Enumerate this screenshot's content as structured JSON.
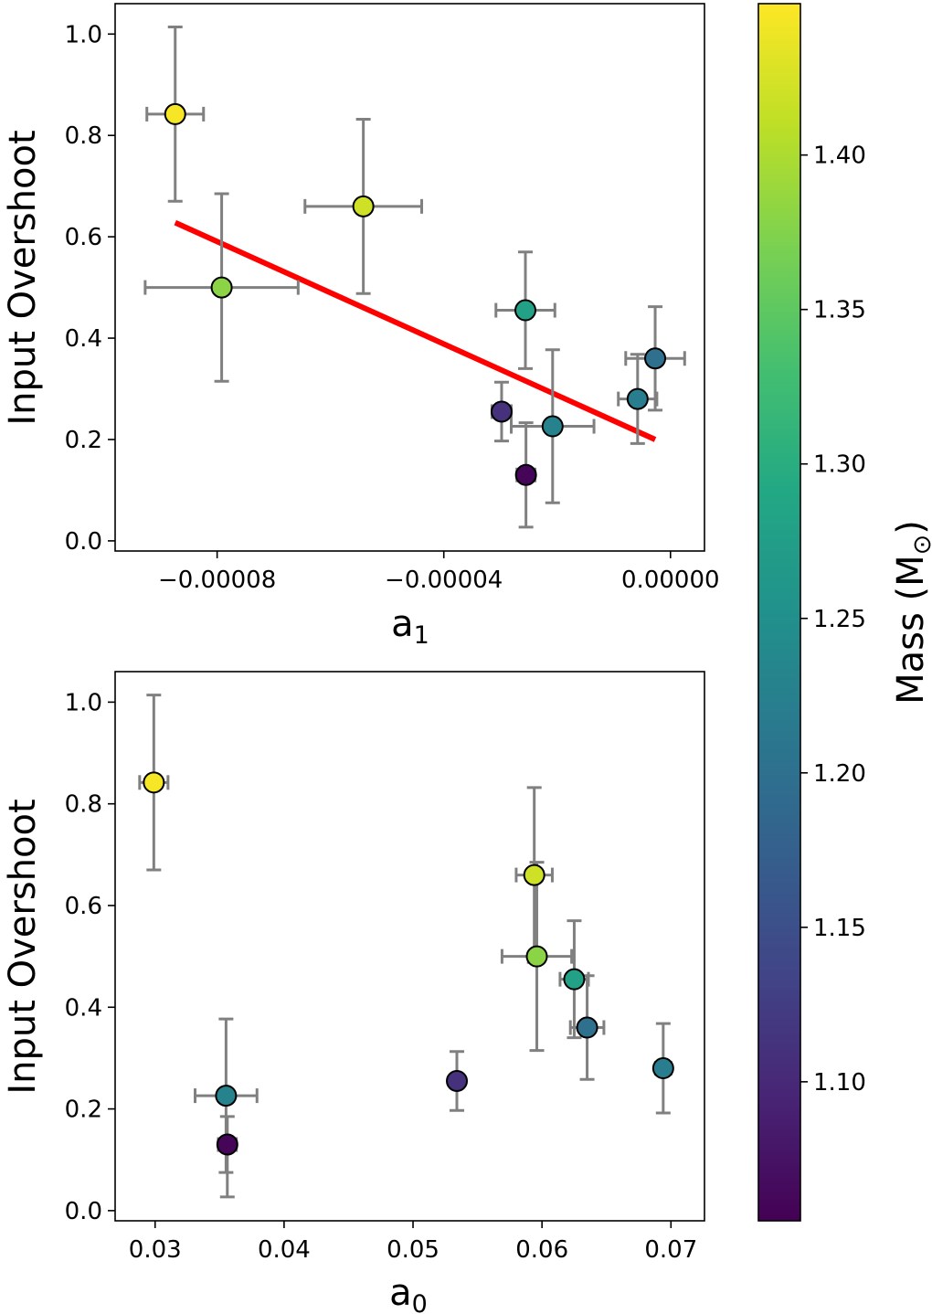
{
  "chart_data": [
    {
      "type": "scatter",
      "id": "top",
      "xlabel": "a",
      "xlabel_sub": "1",
      "ylabel": "Input Overshoot",
      "xlim": [
        -9.8e-05,
        6e-06
      ],
      "ylim": [
        -0.02,
        1.06
      ],
      "xticks": [
        -8e-05,
        -4e-05,
        0.0
      ],
      "xtick_labels": [
        "−0.00008",
        "−0.00004",
        "0.00000"
      ],
      "yticks": [
        0.0,
        0.2,
        0.4,
        0.6,
        0.8,
        1.0
      ],
      "ytick_labels": [
        "0.0",
        "0.2",
        "0.4",
        "0.6",
        "0.8",
        "1.0"
      ],
      "points": [
        {
          "x": -8.74e-05,
          "y": 0.842,
          "xerr": 5e-06,
          "yerr_low": 0.172,
          "yerr_high": 0.172,
          "mass": 1.445
        },
        {
          "x": -7.92e-05,
          "y": 0.5,
          "xerr": 1.35e-05,
          "yerr_low": 0.185,
          "yerr_high": 0.185,
          "mass": 1.38
        },
        {
          "x": -5.42e-05,
          "y": 0.66,
          "xerr": 1.03e-05,
          "yerr_low": 0.172,
          "yerr_high": 0.172,
          "mass": 1.42
        },
        {
          "x": -2.56e-05,
          "y": 0.455,
          "xerr": 5.2e-06,
          "yerr_low": 0.115,
          "yerr_high": 0.115,
          "mass": 1.28
        },
        {
          "x": -2.98e-05,
          "y": 0.255,
          "xerr": 1.7e-06,
          "yerr_low": 0.058,
          "yerr_high": 0.058,
          "mass": 1.11
        },
        {
          "x": -2.55e-05,
          "y": 0.13,
          "xerr": 1.6e-06,
          "yerr_low": 0.103,
          "yerr_high": 0.103,
          "mass": 1.06
        },
        {
          "x": -2.08e-05,
          "y": 0.226,
          "xerr": 7.3e-06,
          "yerr_low": 0.151,
          "yerr_high": 0.151,
          "mass": 1.23
        },
        {
          "x": -5.8e-06,
          "y": 0.28,
          "xerr": 3.4e-06,
          "yerr_low": 0.088,
          "yerr_high": 0.088,
          "mass": 1.22
        },
        {
          "x": -2.7e-06,
          "y": 0.36,
          "xerr": 5.2e-06,
          "yerr_low": 0.102,
          "yerr_high": 0.102,
          "mass": 1.2
        }
      ],
      "fit_line": {
        "x": [
          -8.74e-05,
          -2.7e-06
        ],
        "y": [
          0.628,
          0.2
        ],
        "color": "#ff0000"
      }
    },
    {
      "type": "scatter",
      "id": "bottom",
      "xlabel": "a",
      "xlabel_sub": "0",
      "ylabel": "Input Overshoot",
      "xlim": [
        0.0269,
        0.0726
      ],
      "ylim": [
        -0.02,
        1.06
      ],
      "xticks": [
        0.03,
        0.04,
        0.05,
        0.06,
        0.07
      ],
      "xtick_labels": [
        "0.03",
        "0.04",
        "0.05",
        "0.06",
        "0.07"
      ],
      "yticks": [
        0.0,
        0.2,
        0.4,
        0.6,
        0.8,
        1.0
      ],
      "ytick_labels": [
        "0.0",
        "0.2",
        "0.4",
        "0.6",
        "0.8",
        "1.0"
      ],
      "points": [
        {
          "x": 0.0299,
          "y": 0.842,
          "xerr": 0.0011,
          "yerr_low": 0.172,
          "yerr_high": 0.172,
          "mass": 1.445
        },
        {
          "x": 0.0355,
          "y": 0.226,
          "xerr": 0.0024,
          "yerr_low": 0.151,
          "yerr_high": 0.151,
          "mass": 1.23
        },
        {
          "x": 0.0356,
          "y": 0.13,
          "xerr": 0.0007,
          "yerr_low": 0.103,
          "yerr_high": 0.055,
          "mass": 1.06
        },
        {
          "x": 0.0534,
          "y": 0.255,
          "xerr": 0.0003,
          "yerr_low": 0.058,
          "yerr_high": 0.058,
          "mass": 1.11
        },
        {
          "x": 0.0594,
          "y": 0.66,
          "xerr": 0.0014,
          "yerr_low": 0.172,
          "yerr_high": 0.172,
          "mass": 1.42
        },
        {
          "x": 0.0596,
          "y": 0.5,
          "xerr": 0.0027,
          "yerr_low": 0.185,
          "yerr_high": 0.185,
          "mass": 1.38
        },
        {
          "x": 0.0625,
          "y": 0.455,
          "xerr": 0.0011,
          "yerr_low": 0.115,
          "yerr_high": 0.115,
          "mass": 1.28
        },
        {
          "x": 0.0635,
          "y": 0.36,
          "xerr": 0.0013,
          "yerr_low": 0.102,
          "yerr_high": 0.102,
          "mass": 1.2
        },
        {
          "x": 0.0694,
          "y": 0.28,
          "xerr": 0.0006,
          "yerr_low": 0.088,
          "yerr_high": 0.088,
          "mass": 1.22
        }
      ]
    }
  ],
  "colorbar": {
    "label": "Mass (M",
    "label_sub": "⊙",
    "label_close": ")",
    "vmin": 1.055,
    "vmax": 1.449,
    "colormap": "viridis",
    "ticks": [
      1.1,
      1.15,
      1.2,
      1.25,
      1.3,
      1.35,
      1.4
    ],
    "tick_labels": [
      "1.10",
      "1.15",
      "1.20",
      "1.25",
      "1.30",
      "1.35",
      "1.40"
    ]
  },
  "colors": {
    "errorbar": "#808080",
    "point_edge": "#000000",
    "fit_line": "#ff0000"
  }
}
